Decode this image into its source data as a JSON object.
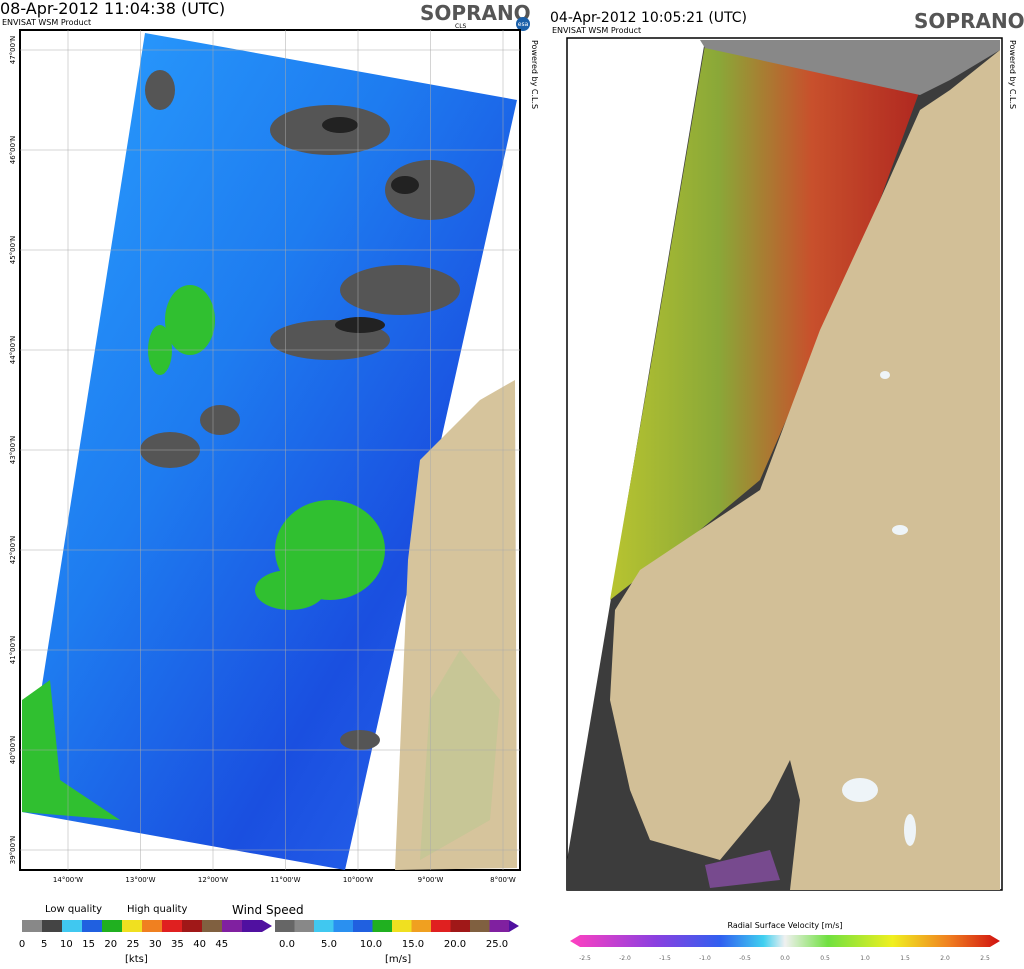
{
  "left_panel": {
    "title": "08-Apr-2012 11:04:38 (UTC)",
    "product": "ENVISAT WSM Product",
    "logo": "SOPRANO",
    "logo_sub": "CLS",
    "logo_esa": "esa",
    "credit": "Powered by C.L.S",
    "lat_labels": [
      "47°00'N",
      "46°00'N",
      "45°00'N",
      "44°00'N",
      "43°00'N",
      "42°00'N",
      "41°00'N",
      "40°00'N",
      "39°00'N"
    ],
    "lon_labels": [
      "14°00'W",
      "13°00'W",
      "12°00'W",
      "11°00'W",
      "10°00'W",
      "9°00'W",
      "8°00'W"
    ]
  },
  "left_legend": {
    "low_quality": "Low quality",
    "high_quality": "High quality",
    "wind_speed": "Wind Speed",
    "kts_ticks": [
      "0",
      "5",
      "10",
      "15",
      "20",
      "25",
      "30",
      "35",
      "40",
      "45"
    ],
    "kts_unit": "[kts]",
    "ms_ticks": [
      "0.0",
      "5.0",
      "10.0",
      "15.0",
      "20.0",
      "25.0"
    ],
    "ms_unit": "[m/s]"
  },
  "right_panel": {
    "title": "04-Apr-2012 10:05:21 (UTC)",
    "product": "ENVISAT WSM Product",
    "logo": "SOPRANO",
    "credit": "Powered by C.L.S"
  },
  "right_legend": {
    "title": "Radial Surface Velocity [m/s]",
    "ticks": [
      "-2.5",
      "-2.0",
      "-1.5",
      "-1.0",
      "-0.5",
      "0.0",
      "0.5",
      "1.0",
      "1.5",
      "2.0",
      "2.5"
    ]
  }
}
